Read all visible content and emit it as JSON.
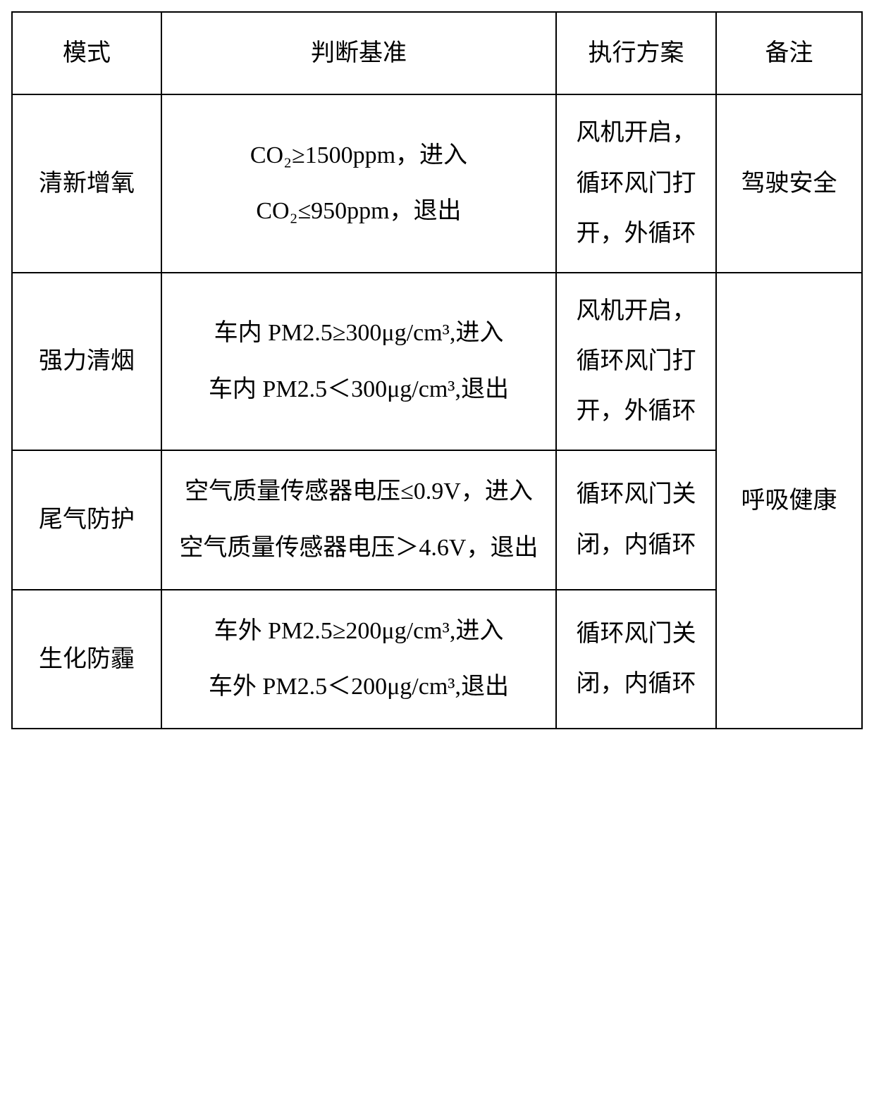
{
  "borderColor": "#000000",
  "textColor": "#000000",
  "backgroundColor": "#ffffff",
  "fontFamily": "SimSun",
  "fontSizePx": 34,
  "header": {
    "mode": "模式",
    "criteria": "判断基准",
    "execution": "执行方案",
    "note": "备注"
  },
  "rows": [
    {
      "mode": "清新增氧",
      "criteria_line1": "CO₂≥1500ppm，进入",
      "criteria_line2": "CO₂≤950ppm，退出",
      "execution": "风机开启，循环风门打开，外循环",
      "note": "驾驶安全"
    },
    {
      "mode": "强力清烟",
      "criteria_line1": "车内 PM2.5≥300μg/cm³,进入",
      "criteria_line2": "车内 PM2.5＜300μg/cm³,退出",
      "execution": "风机开启，循环风门打开，外循环"
    },
    {
      "mode": "尾气防护",
      "criteria_line1": "空气质量传感器电压≤0.9V，进入",
      "criteria_line2": "空气质量传感器电压＞4.6V，退出",
      "execution": "循环风门关闭，内循环"
    },
    {
      "mode": "生化防霾",
      "criteria_line1": "车外 PM2.5≥200μg/cm³,进入",
      "criteria_line2": "车外 PM2.5＜200μg/cm³,退出",
      "execution": "循环风门关闭，内循环"
    }
  ],
  "mergedNote": "呼吸健康"
}
